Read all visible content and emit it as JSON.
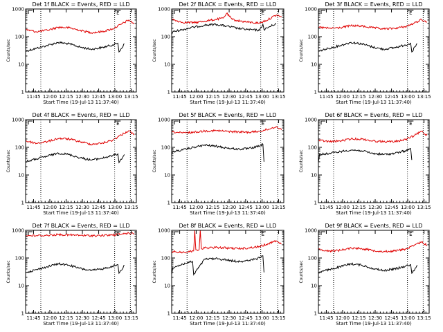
{
  "colors": {
    "events": "#000000",
    "lld": "#e00000",
    "axes": "#000000",
    "background": "#ffffff"
  },
  "chart_data": [
    {
      "type": "line",
      "title": "Det 1f BLACK = Events, RED = LLD",
      "xlabel": "Start Time (19-Jul-13 11:37:40)",
      "ylabel": "Counts/sec",
      "y_scale": "log",
      "ylim": [
        1,
        1000
      ],
      "y_ticks": [
        1,
        10,
        100,
        1000
      ],
      "x_ticks": [
        "11:45",
        "12:00",
        "12:15",
        "12:30",
        "12:45",
        "13:00",
        "13:15"
      ],
      "x_tick_minutes": [
        7.3,
        22.3,
        37.3,
        52.3,
        67.3,
        82.3,
        97.3
      ],
      "xlim_minutes": [
        0,
        102
      ],
      "marker_label": "E",
      "marker_minute": 85,
      "vlines_minutes": [
        14,
        82,
        96.5
      ],
      "series": [
        {
          "key": "events",
          "x": [
            0,
            10,
            20,
            30,
            40,
            50,
            60,
            70,
            80,
            85,
            86,
            91
          ],
          "y": [
            30,
            38,
            48,
            62,
            55,
            42,
            35,
            40,
            50,
            58,
            28,
            55
          ]
        },
        {
          "key": "lld",
          "x": [
            0,
            10,
            20,
            30,
            40,
            50,
            60,
            70,
            80,
            88,
            95,
            100
          ],
          "y": [
            180,
            150,
            170,
            220,
            210,
            170,
            140,
            150,
            190,
            280,
            400,
            290
          ]
        }
      ]
    },
    {
      "type": "line",
      "title": "Det 2f BLACK = Events, RED = LLD",
      "xlabel": "Start Time (19-Jul-13 11:37:40)",
      "ylabel": "Counts/sec",
      "y_scale": "log",
      "ylim": [
        1,
        1000
      ],
      "y_ticks": [
        1,
        10,
        100,
        1000
      ],
      "x_ticks": [
        "11:45",
        "12:00",
        "12:15",
        "12:30",
        "12:45",
        "13:00",
        "13:15"
      ],
      "x_tick_minutes": [
        7.3,
        22.3,
        37.3,
        52.3,
        67.3,
        82.3,
        97.3
      ],
      "xlim_minutes": [
        0,
        102
      ],
      "marker_label": "E",
      "marker_minute": 83,
      "vlines_minutes": [
        14,
        81,
        96.5
      ],
      "series": [
        {
          "key": "events",
          "x": [
            0,
            1,
            10,
            20,
            30,
            40,
            50,
            60,
            70,
            80,
            83,
            84,
            95
          ],
          "y": [
            120,
            150,
            180,
            220,
            260,
            280,
            240,
            200,
            180,
            170,
            280,
            180,
            300
          ]
        },
        {
          "key": "lld",
          "x": [
            0,
            10,
            20,
            30,
            40,
            47,
            50,
            55,
            60,
            70,
            80,
            88,
            95,
            100
          ],
          "y": [
            420,
            330,
            320,
            360,
            420,
            470,
            700,
            420,
            380,
            330,
            310,
            420,
            600,
            520
          ]
        }
      ]
    },
    {
      "type": "line",
      "title": "Det 3f BLACK = Events, RED = LLD",
      "xlabel": "Start Time (19-Jul-13 11:37:40)",
      "ylabel": "Counts/sec",
      "y_scale": "log",
      "ylim": [
        1,
        1000
      ],
      "y_ticks": [
        1,
        10,
        100,
        1000
      ],
      "x_ticks": [
        "11:45",
        "12:00",
        "12:15",
        "12:30",
        "12:45",
        "13:00",
        "13:15"
      ],
      "x_tick_minutes": [
        7.3,
        22.3,
        37.3,
        52.3,
        67.3,
        82.3,
        97.3
      ],
      "xlim_minutes": [
        0,
        102
      ],
      "marker_label": "E",
      "marker_minute": 85,
      "vlines_minutes": [
        14,
        82,
        96.5
      ],
      "series": [
        {
          "key": "events",
          "x": [
            0,
            10,
            20,
            30,
            40,
            50,
            60,
            70,
            80,
            85,
            86,
            91
          ],
          "y": [
            30,
            38,
            48,
            62,
            55,
            42,
            35,
            40,
            50,
            58,
            28,
            55
          ]
        },
        {
          "key": "lld",
          "x": [
            0,
            10,
            20,
            30,
            40,
            50,
            60,
            70,
            80,
            88,
            95,
            100
          ],
          "y": [
            220,
            200,
            210,
            250,
            240,
            210,
            190,
            200,
            230,
            300,
            420,
            330
          ]
        }
      ]
    },
    {
      "type": "line",
      "title": "Det 4f BLACK = Events, RED = LLD",
      "xlabel": "Start Time (19-Jul-13 11:37:40)",
      "ylabel": "Counts/sec",
      "y_scale": "log",
      "ylim": [
        1,
        1000
      ],
      "y_ticks": [
        1,
        10,
        100,
        1000
      ],
      "x_ticks": [
        "11:45",
        "12:00",
        "12:15",
        "12:30",
        "12:45",
        "13:00",
        "13:15"
      ],
      "x_tick_minutes": [
        7.3,
        22.3,
        37.3,
        52.3,
        67.3,
        82.3,
        97.3
      ],
      "xlim_minutes": [
        0,
        102
      ],
      "marker_label": "E",
      "marker_minute": 85,
      "vlines_minutes": [
        14,
        82,
        96.5
      ],
      "series": [
        {
          "key": "events",
          "x": [
            0,
            10,
            20,
            30,
            40,
            50,
            60,
            70,
            80,
            85,
            86,
            91
          ],
          "y": [
            30,
            38,
            48,
            62,
            55,
            42,
            35,
            40,
            50,
            58,
            28,
            55
          ]
        },
        {
          "key": "lld",
          "x": [
            0,
            10,
            20,
            30,
            40,
            50,
            60,
            70,
            80,
            88,
            95,
            100
          ],
          "y": [
            170,
            140,
            160,
            210,
            200,
            160,
            130,
            140,
            180,
            280,
            400,
            280
          ]
        }
      ]
    },
    {
      "type": "line",
      "title": "Det 5f BLACK = Events, RED = LLD",
      "xlabel": "Start Time (19-Jul-13 11:37:40)",
      "ylabel": "Counts/sec",
      "y_scale": "log",
      "ylim": [
        1,
        1000
      ],
      "y_ticks": [
        1,
        10,
        100,
        1000
      ],
      "x_ticks": [
        "11:45",
        "12:00",
        "12:15",
        "12:30",
        "12:45",
        "13:00",
        "13:15"
      ],
      "x_tick_minutes": [
        7.3,
        22.3,
        37.3,
        52.3,
        67.3,
        82.3,
        97.3
      ],
      "xlim_minutes": [
        0,
        102
      ],
      "marker_label": "E",
      "marker_minute": 83,
      "vlines_minutes": [
        14,
        81,
        96.5
      ],
      "series": [
        {
          "key": "events",
          "x": [
            0,
            1,
            10,
            20,
            30,
            40,
            50,
            60,
            70,
            80,
            83,
            84
          ],
          "y": [
            50,
            70,
            80,
            100,
            120,
            110,
            95,
            85,
            90,
            110,
            130,
            30
          ]
        },
        {
          "key": "lld",
          "x": [
            0,
            10,
            20,
            30,
            40,
            50,
            60,
            70,
            80,
            88,
            95,
            100
          ],
          "y": [
            360,
            330,
            350,
            390,
            400,
            380,
            360,
            350,
            380,
            450,
            560,
            430
          ]
        }
      ]
    },
    {
      "type": "line",
      "title": "Det 6f BLACK = Events, RED = LLD",
      "xlabel": "Start Time (19-Jul-13 11:37:40)",
      "ylabel": "Counts/sec",
      "y_scale": "log",
      "ylim": [
        1,
        1000
      ],
      "y_ticks": [
        1,
        10,
        100,
        1000
      ],
      "x_ticks": [
        "11:45",
        "12:00",
        "12:15",
        "12:30",
        "12:45",
        "13:00",
        "13:15"
      ],
      "x_tick_minutes": [
        7.3,
        22.3,
        37.3,
        52.3,
        67.3,
        82.3,
        97.3
      ],
      "xlim_minutes": [
        0,
        102
      ],
      "marker_label": "E",
      "marker_minute": 85,
      "vlines_minutes": [
        14,
        82,
        96.5
      ],
      "series": [
        {
          "key": "events",
          "x": [
            0,
            1,
            10,
            20,
            30,
            40,
            50,
            60,
            70,
            80,
            85,
            86
          ],
          "y": [
            30,
            55,
            60,
            70,
            80,
            75,
            60,
            55,
            60,
            75,
            90,
            35
          ]
        },
        {
          "key": "lld",
          "x": [
            0,
            10,
            20,
            30,
            40,
            50,
            60,
            70,
            80,
            88,
            95,
            100
          ],
          "y": [
            180,
            160,
            170,
            200,
            200,
            170,
            160,
            160,
            190,
            260,
            380,
            270
          ]
        }
      ]
    },
    {
      "type": "line",
      "title": "Det 7f BLACK = Events, RED = LLD",
      "xlabel": "Start Time (19-Jul-13 11:37:40)",
      "ylabel": "Counts/sec",
      "y_scale": "log",
      "ylim": [
        1,
        1000
      ],
      "y_ticks": [
        1,
        10,
        100,
        1000
      ],
      "x_ticks": [
        "11:45",
        "12:00",
        "12:15",
        "12:30",
        "12:45",
        "13:00",
        "13:15"
      ],
      "x_tick_minutes": [
        7.3,
        22.3,
        37.3,
        52.3,
        67.3,
        82.3,
        97.3
      ],
      "xlim_minutes": [
        0,
        102
      ],
      "marker_label": "E",
      "marker_minute": 85,
      "vlines_minutes": [
        14,
        82,
        96.5
      ],
      "series": [
        {
          "key": "events",
          "x": [
            0,
            10,
            20,
            30,
            40,
            50,
            60,
            70,
            80,
            85,
            86,
            91
          ],
          "y": [
            30,
            38,
            48,
            62,
            55,
            42,
            35,
            40,
            50,
            58,
            28,
            55
          ]
        },
        {
          "key": "lld",
          "x": [
            0,
            10,
            20,
            30,
            40,
            50,
            60,
            70,
            80,
            88,
            95,
            100
          ],
          "y": [
            650,
            640,
            660,
            700,
            680,
            660,
            640,
            650,
            680,
            720,
            800,
            760
          ]
        }
      ]
    },
    {
      "type": "line",
      "title": "Det 8f BLACK = Events, RED = LLD",
      "xlabel": "Start Time (19-Jul-13 11:37:40)",
      "ylabel": "Counts/sec",
      "y_scale": "log",
      "ylim": [
        1,
        1000
      ],
      "y_ticks": [
        1,
        10,
        100,
        1000
      ],
      "x_ticks": [
        "11:45",
        "12:00",
        "12:15",
        "12:30",
        "12:45",
        "13:00",
        "13:15"
      ],
      "x_tick_minutes": [
        7.3,
        22.3,
        37.3,
        52.3,
        67.3,
        82.3,
        97.3
      ],
      "xlim_minutes": [
        0,
        102
      ],
      "marker_label": "E",
      "marker_minute": 83,
      "vlines_minutes": [
        14,
        81,
        96.5
      ],
      "series": [
        {
          "key": "events",
          "x": [
            0,
            1,
            10,
            19,
            20,
            30,
            40,
            50,
            60,
            70,
            80,
            83,
            84
          ],
          "y": [
            25,
            45,
            60,
            75,
            25,
            90,
            95,
            85,
            75,
            80,
            100,
            120,
            30
          ]
        },
        {
          "key": "lld",
          "x": [
            0,
            10,
            20,
            21,
            22,
            25,
            26,
            27,
            30,
            40,
            50,
            60,
            70,
            80,
            88,
            95,
            100
          ],
          "y": [
            170,
            160,
            180,
            1000,
            200,
            200,
            1000,
            220,
            230,
            240,
            230,
            220,
            230,
            260,
            330,
            420,
            320
          ]
        }
      ]
    },
    {
      "type": "line",
      "title": "Det 9f BLACK = Events, RED = LLD",
      "xlabel": "Start Time (19-Jul-13 11:37:40)",
      "ylabel": "Counts/sec",
      "y_scale": "log",
      "ylim": [
        1,
        1000
      ],
      "y_ticks": [
        1,
        10,
        100,
        1000
      ],
      "x_ticks": [
        "11:45",
        "12:00",
        "12:15",
        "12:30",
        "12:45",
        "13:00",
        "13:15"
      ],
      "x_tick_minutes": [
        7.3,
        22.3,
        37.3,
        52.3,
        67.3,
        82.3,
        97.3
      ],
      "xlim_minutes": [
        0,
        102
      ],
      "marker_label": "E",
      "marker_minute": 85,
      "vlines_minutes": [
        14,
        82,
        96.5
      ],
      "series": [
        {
          "key": "events",
          "x": [
            0,
            10,
            20,
            30,
            40,
            50,
            60,
            70,
            80,
            85,
            86,
            91
          ],
          "y": [
            30,
            38,
            48,
            62,
            55,
            42,
            35,
            40,
            50,
            58,
            28,
            55
          ]
        },
        {
          "key": "lld",
          "x": [
            0,
            10,
            20,
            30,
            40,
            50,
            60,
            70,
            80,
            88,
            95,
            100
          ],
          "y": [
            200,
            180,
            190,
            230,
            220,
            190,
            170,
            180,
            210,
            280,
            380,
            290
          ]
        }
      ]
    }
  ]
}
